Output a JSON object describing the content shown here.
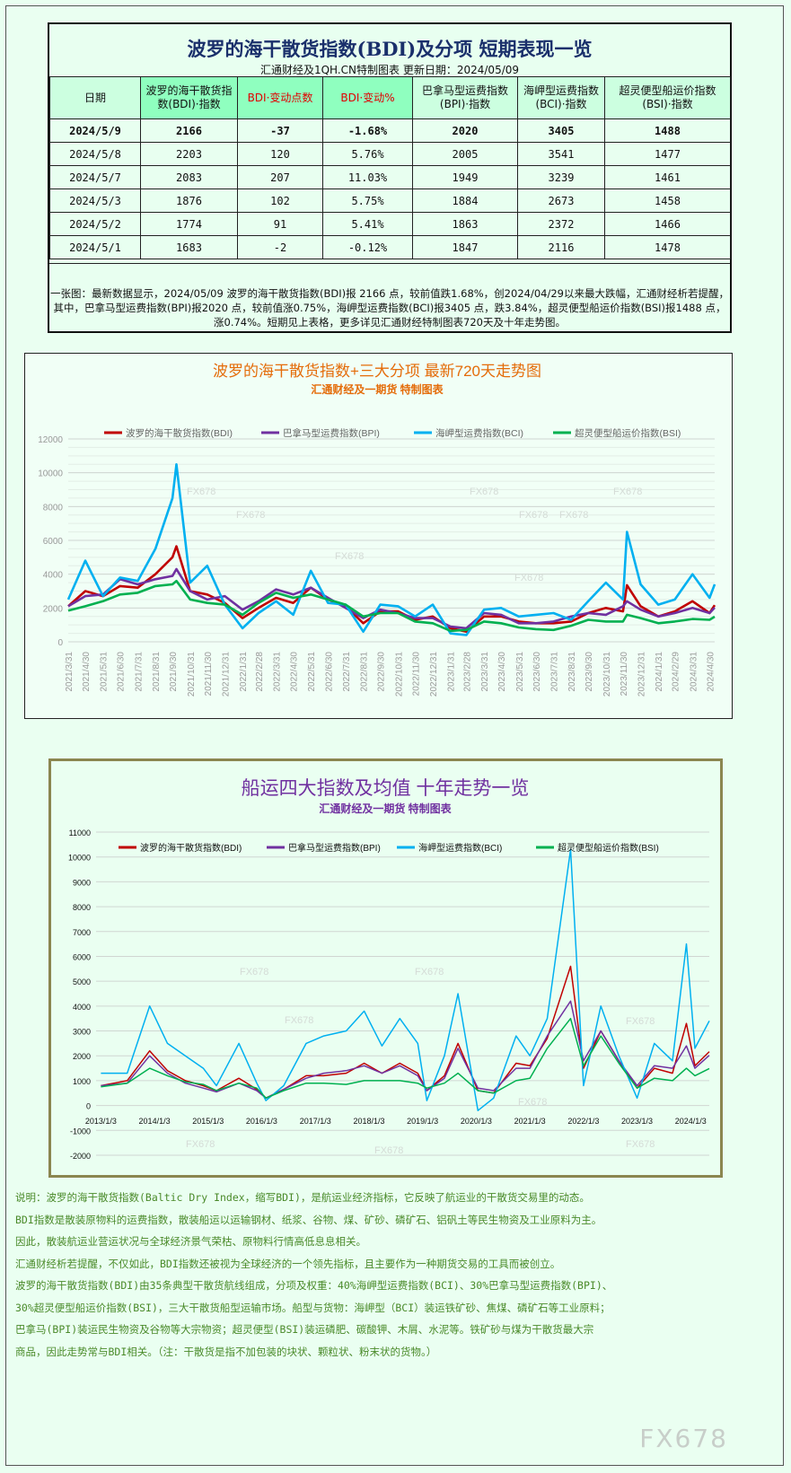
{
  "table": {
    "title": "波罗的海干散货指数(BDI)及分项 短期表现一览",
    "subtitle": "汇通财经及1QH.CN特制图表    更新日期：2024/05/09",
    "headers": [
      "日期",
      "波罗的海干散货指数(BDI)·指数",
      "BDI·变动点数",
      "BDI·变动%",
      "巴拿马型运费指数(BPI)·指数",
      "海岬型运费指数(BCI)·指数",
      "超灵便型船运价指数(BSI)·指数"
    ],
    "rows": [
      [
        "2024/5/9",
        "2166",
        "-37",
        "-1.68%",
        "2020",
        "3405",
        "1488"
      ],
      [
        "2024/5/8",
        "2203",
        "120",
        "5.76%",
        "2005",
        "3541",
        "1477"
      ],
      [
        "2024/5/7",
        "2083",
        "207",
        "11.03%",
        "1949",
        "3239",
        "1461"
      ],
      [
        "2024/5/3",
        "1876",
        "102",
        "5.75%",
        "1884",
        "2673",
        "1458"
      ],
      [
        "2024/5/2",
        "1774",
        "91",
        "5.41%",
        "1863",
        "2372",
        "1466"
      ],
      [
        "2024/5/1",
        "1683",
        "-2",
        "-0.12%",
        "1847",
        "2116",
        "1478"
      ]
    ],
    "note": "一张图：最新数据显示，2024/05/09 波罗的海干散货指数(BDI)报 2166 点，较前值跌1.68%，创2024/04/29以来最大跌幅，汇通财经析若提醒，其中，巴拿马型运费指数(BPI)报2020 点，较前值涨0.75%，海岬型运费指数(BCI)报3405 点，跌3.84%，超灵便型船运价指数(BSI)报1488 点，涨0.74%。短期见上表格，更多详见汇通财经特制图表720天及十年走势图。"
  },
  "chart_data": [
    {
      "type": "line",
      "title": "波罗的海干散货指数+三大分项 最新720天走势图",
      "subtitle": "汇通财经及一期货  特制图表",
      "ylim": [
        0,
        12000
      ],
      "yticks": [
        "0",
        "2000",
        "4000",
        "6000",
        "8000",
        "10000",
        "12000"
      ],
      "xticks": [
        "2021/3/31",
        "2021/4/30",
        "2021/5/31",
        "2021/6/30",
        "2021/7/31",
        "2021/8/31",
        "2021/9/30",
        "2021/10/31",
        "2021/11/30",
        "2021/12/31",
        "2022/1/31",
        "2022/2/28",
        "2022/3/31",
        "2022/4/30",
        "2022/5/31",
        "2022/6/30",
        "2022/7/31",
        "2022/8/31",
        "2022/9/30",
        "2022/10/31",
        "2022/11/30",
        "2022/12/31",
        "2023/1/31",
        "2023/2/28",
        "2023/3/31",
        "2023/4/30",
        "2023/5/31",
        "2023/6/30",
        "2023/7/31",
        "2023/8/31",
        "2023/9/30",
        "2023/10/31",
        "2023/11/30",
        "2023/12/31",
        "2024/1/31",
        "2024/2/29",
        "2024/3/31",
        "2024/4/30"
      ],
      "grid": true,
      "legend": "top",
      "x": [
        "2021/3/31",
        "2021/4/30",
        "2021/5/31",
        "2021/6/30",
        "2021/7/31",
        "2021/8/31",
        "2021/9/30",
        "2021/10/7",
        "2021/10/31",
        "2021/11/30",
        "2021/12/31",
        "2022/1/31",
        "2022/2/28",
        "2022/3/31",
        "2022/4/30",
        "2022/5/31",
        "2022/6/30",
        "2022/7/31",
        "2022/8/31",
        "2022/9/30",
        "2022/10/31",
        "2022/11/30",
        "2022/12/31",
        "2023/1/31",
        "2023/2/28",
        "2023/3/31",
        "2023/4/30",
        "2023/5/31",
        "2023/6/30",
        "2023/7/31",
        "2023/8/31",
        "2023/9/30",
        "2023/10/31",
        "2023/11/30",
        "2023/12/7",
        "2023/12/31",
        "2024/1/31",
        "2024/2/29",
        "2024/3/31",
        "2024/4/30",
        "2024/5/9"
      ],
      "series": [
        {
          "name": "波罗的海干散货指数(BDI)",
          "color": "#c00000",
          "values": [
            2100,
            3000,
            2700,
            3300,
            3200,
            4000,
            5000,
            5650,
            3000,
            2800,
            2300,
            1400,
            2000,
            2600,
            2300,
            3200,
            2500,
            2100,
            1100,
            1800,
            1800,
            1300,
            1500,
            800,
            600,
            1500,
            1500,
            1200,
            1100,
            1100,
            1200,
            1700,
            2000,
            1800,
            3350,
            2100,
            1500,
            1800,
            2400,
            1700,
            2166
          ]
        },
        {
          "name": "巴拿马型运费指数(BPI)",
          "color": "#7030a0",
          "values": [
            2100,
            2700,
            2800,
            3700,
            3400,
            3700,
            3900,
            4300,
            3000,
            2500,
            2700,
            1900,
            2400,
            3100,
            2800,
            3200,
            2600,
            2000,
            1400,
            1900,
            1700,
            1400,
            1400,
            900,
            800,
            1700,
            1600,
            1100,
            1100,
            1200,
            1500,
            1700,
            1600,
            2100,
            2400,
            1900,
            1500,
            1700,
            2000,
            1700,
            2020
          ]
        },
        {
          "name": "海岬型运费指数(BCI)",
          "color": "#00b0f0",
          "values": [
            2500,
            4800,
            2700,
            3800,
            3600,
            5500,
            8500,
            10500,
            3500,
            4500,
            2200,
            800,
            1700,
            2400,
            1600,
            4200,
            2300,
            2200,
            600,
            2200,
            2100,
            1500,
            2200,
            500,
            400,
            1900,
            2000,
            1500,
            1600,
            1700,
            1300,
            2400,
            3500,
            2500,
            6500,
            3400,
            2200,
            2500,
            4000,
            2600,
            3405
          ]
        },
        {
          "name": "超灵便型船运价指数(BSI)",
          "color": "#00b050",
          "values": [
            1850,
            2100,
            2400,
            2800,
            2900,
            3300,
            3400,
            3600,
            2500,
            2300,
            2200,
            1600,
            2300,
            2900,
            2600,
            2800,
            2500,
            2200,
            1500,
            1700,
            1700,
            1200,
            1100,
            650,
            700,
            1200,
            1100,
            850,
            750,
            700,
            950,
            1300,
            1200,
            1200,
            1600,
            1400,
            1100,
            1200,
            1350,
            1300,
            1488
          ]
        }
      ]
    },
    {
      "type": "line",
      "title": "船运四大指数及均值 十年走势一览",
      "subtitle": "汇通财经及一期货 特制图表",
      "ylim": [
        -2000,
        11000
      ],
      "yticks": [
        "-2000",
        "-1000",
        "0",
        "1000",
        "2000",
        "3000",
        "4000",
        "5000",
        "6000",
        "7000",
        "8000",
        "9000",
        "10000",
        "11000"
      ],
      "xticks": [
        "2013/1/3",
        "2014/1/3",
        "2015/1/3",
        "2016/1/3",
        "2017/1/3",
        "2018/1/3",
        "2019/1/3",
        "2020/1/3",
        "2021/1/3",
        "2022/1/3",
        "2023/1/3",
        "2024/1/3"
      ],
      "grid": true,
      "legend": "top",
      "x": [
        "2013/1/3",
        "2013/7/1",
        "2013/12/1",
        "2014/4/1",
        "2014/8/1",
        "2014/12/1",
        "2015/3/1",
        "2015/8/1",
        "2015/12/1",
        "2016/2/1",
        "2016/6/1",
        "2016/11/1",
        "2017/3/1",
        "2017/8/1",
        "2017/12/1",
        "2018/4/1",
        "2018/8/1",
        "2018/12/1",
        "2019/2/1",
        "2019/6/1",
        "2019/9/1",
        "2020/1/15",
        "2020/5/1",
        "2020/10/1",
        "2021/1/3",
        "2021/5/1",
        "2021/10/7",
        "2022/1/3",
        "2022/5/1",
        "2022/9/1",
        "2023/1/3",
        "2023/5/1",
        "2023/9/1",
        "2023/12/5",
        "2024/2/1",
        "2024/5/9"
      ],
      "series": [
        {
          "name": "波罗的海干散货指数(BDI)",
          "color": "#c00000",
          "values": [
            800,
            1000,
            2200,
            1400,
            1000,
            800,
            600,
            1100,
            650,
            300,
            650,
            1200,
            1200,
            1300,
            1700,
            1300,
            1700,
            1300,
            600,
            1200,
            2500,
            600,
            500,
            1700,
            1600,
            2700,
            5600,
            1500,
            3000,
            1800,
            700,
            1500,
            1300,
            3300,
            1600,
            2166
          ]
        },
        {
          "name": "巴拿马型运费指数(BPI)",
          "color": "#7030a0",
          "values": [
            800,
            900,
            2000,
            1300,
            900,
            700,
            550,
            900,
            600,
            300,
            650,
            1100,
            1300,
            1400,
            1600,
            1300,
            1600,
            1200,
            600,
            1100,
            2300,
            700,
            600,
            1500,
            1500,
            2800,
            4200,
            1800,
            3000,
            1800,
            800,
            1600,
            1500,
            2400,
            1500,
            2020
          ]
        },
        {
          "name": "海岬型运费指数(BCI)",
          "color": "#00b0f0",
          "values": [
            1300,
            1300,
            4000,
            2500,
            2000,
            1500,
            800,
            2500,
            900,
            200,
            800,
            2500,
            2800,
            3000,
            3800,
            2400,
            3500,
            2500,
            200,
            2000,
            4500,
            -200,
            300,
            2800,
            2000,
            3500,
            10300,
            800,
            4000,
            2000,
            300,
            2500,
            1800,
            6500,
            2300,
            3405
          ]
        },
        {
          "name": "超灵便型船运价指数(BSI)",
          "color": "#00b050",
          "values": [
            750,
            900,
            1500,
            1200,
            950,
            850,
            600,
            900,
            700,
            300,
            600,
            900,
            900,
            850,
            1000,
            1000,
            1000,
            900,
            700,
            900,
            1300,
            600,
            500,
            1000,
            1100,
            2300,
            3500,
            1600,
            2800,
            1700,
            700,
            1100,
            1000,
            1500,
            1200,
            1488
          ]
        }
      ]
    }
  ],
  "description": [
    "说明：波罗的海干散货指数(Baltic Dry Index，缩写BDI)，是航运业经济指标，它反映了航运业的干散货交易里的动态。",
    "BDI指数是散装原物料的运费指数，散装船运以运输钢材、纸浆、谷物、煤、矿砂、磷矿石、铝矾土等民生物资及工业原料为主。",
    "因此，散装航运业营运状况与全球经济景气荣枯、原物料行情高低息息相关。",
    "汇通财经析若提醒，不仅如此，BDI指数还被视为全球经济的一个领先指标，且主要作为一种期货交易的工具而被创立。",
    "波罗的海干散货指数(BDI)由35条典型干散货航线组成，分项及权重：40%海岬型运费指数(BCI)、30%巴拿马型运费指数(BPI)、",
    "30%超灵便型船运价指数(BSI)，三大干散货船型运输市场。船型与货物：海岬型（BCI）装运铁矿砂、焦煤、磷矿石等工业原料；",
    "巴拿马(BPI)装运民生物资及谷物等大宗物资；超灵便型(BSI)装运磷肥、碳酸钾、木屑、水泥等。铁矿砂与煤为干散货最大宗",
    "商品，因此走势常与BDI相关。（注：干散货是指不加包装的块状、颗粒状、粉末状的货物。）"
  ],
  "watermark": "FX678"
}
